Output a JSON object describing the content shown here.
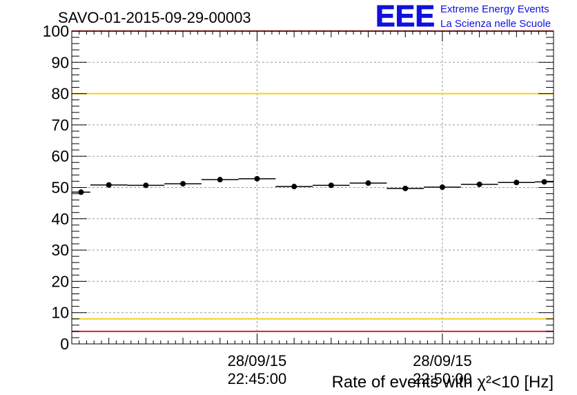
{
  "chart_data": {
    "type": "scatter",
    "title": "SAVO-01-2015-09-29-00003",
    "xlabel": "Rate of events with χ²<10 [Hz]",
    "ylabel": "",
    "ylim": [
      0,
      100
    ],
    "yticks": [
      "0",
      "10",
      "20",
      "30",
      "40",
      "50",
      "60",
      "70",
      "80",
      "90",
      "100"
    ],
    "xlim_minutes": [
      0,
      130
    ],
    "xticks": [
      {
        "date": "28/09/15",
        "time": "22:45:00",
        "minute": 50
      },
      {
        "date": "28/09/15",
        "time": "22:50:00",
        "minute": 100
      }
    ],
    "grid": true,
    "series": [
      {
        "bins_minutes": [
          [
            0,
            5
          ],
          [
            5,
            15
          ],
          [
            15,
            25
          ],
          [
            25,
            35
          ],
          [
            35,
            45
          ],
          [
            45,
            55
          ],
          [
            55,
            65
          ],
          [
            65,
            75
          ],
          [
            75,
            85
          ],
          [
            85,
            95
          ],
          [
            95,
            105
          ],
          [
            105,
            115
          ],
          [
            115,
            125
          ],
          [
            125,
            130
          ]
        ],
        "values": [
          48.5,
          50.8,
          50.7,
          51.2,
          52.5,
          52.8,
          50.3,
          50.7,
          51.4,
          49.7,
          50.1,
          51.0,
          51.6,
          51.8
        ]
      }
    ],
    "reference_lines": [
      {
        "value": 100,
        "color": "#e02020"
      },
      {
        "value": 80,
        "color": "#f2d21a"
      },
      {
        "value": 8,
        "color": "#f2d21a"
      },
      {
        "value": 4,
        "color": "#e02020"
      }
    ]
  },
  "logo": {
    "mark": "EEE",
    "line1": "Extreme Energy Events",
    "line2": "La Scienza nelle Scuole",
    "color": "#1010e0"
  },
  "colors": {
    "axis": "#000000",
    "grid": "#9a9a9a",
    "data": "#000000"
  }
}
